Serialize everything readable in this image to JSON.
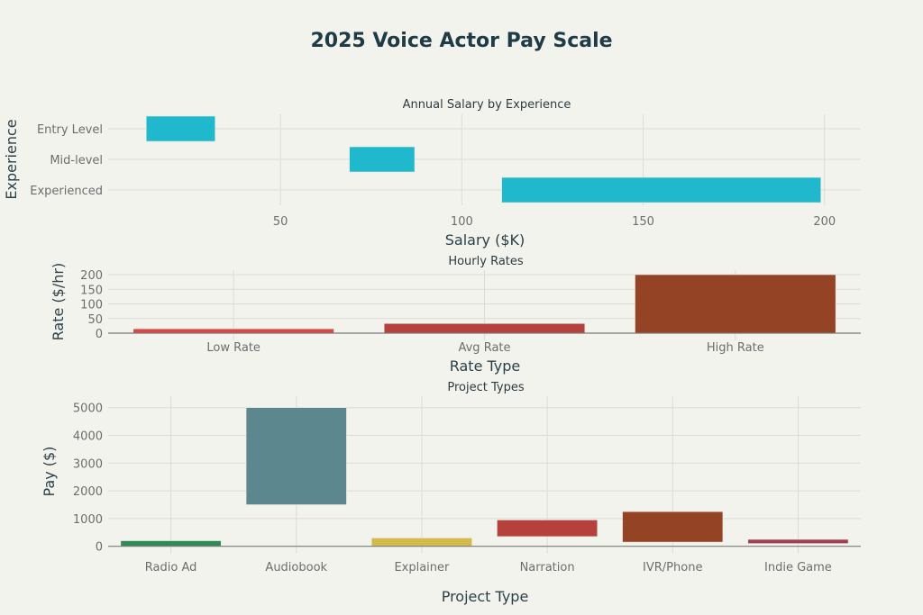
{
  "title": "2025 Voice Actor Pay Scale",
  "chart_data": [
    {
      "type": "bar",
      "orientation": "horizontal",
      "floating": true,
      "title": "Annual Salary by Experience",
      "xlabel": "Salary ($K)",
      "ylabel": "Experience",
      "categories": [
        "Entry Level",
        "Mid-level",
        "Experienced"
      ],
      "ranges": [
        [
          13,
          32
        ],
        [
          69,
          87
        ],
        [
          111,
          199
        ]
      ],
      "xticks": [
        50,
        100,
        150,
        200
      ],
      "xlim": [
        2.5,
        210
      ],
      "color": "#1fb8cd",
      "grid": true
    },
    {
      "type": "bar",
      "title": "Hourly Rates",
      "xlabel": "Rate Type",
      "ylabel": "Rate ($/hr)",
      "categories": [
        "Low Rate",
        "Avg Rate",
        "High Rate"
      ],
      "values": [
        15,
        33,
        200
      ],
      "yticks": [
        0,
        50,
        100,
        150,
        200
      ],
      "ylim": [
        0,
        215
      ],
      "colors": [
        "#db4545",
        "#b4413c",
        "#944325"
      ],
      "grid": true
    },
    {
      "type": "bar",
      "floating": true,
      "title": "Project Types",
      "xlabel": "Project Type",
      "ylabel": "Pay ($)",
      "categories": [
        "Radio Ad",
        "Audiobook",
        "Explainer",
        "Narration",
        "IVR/Phone",
        "Indie Game"
      ],
      "ranges": [
        [
          0,
          200
        ],
        [
          1500,
          5000
        ],
        [
          0,
          300
        ],
        [
          350,
          950
        ],
        [
          150,
          1250
        ],
        [
          100,
          250
        ]
      ],
      "yticks": [
        0,
        1000,
        2000,
        3000,
        4000,
        5000
      ],
      "ylim": [
        0,
        5400
      ],
      "colors": [
        "#2e8b57",
        "#5d878f",
        "#d2ba4c",
        "#b4413c",
        "#944325",
        "#a23f52"
      ],
      "grid": true
    }
  ]
}
